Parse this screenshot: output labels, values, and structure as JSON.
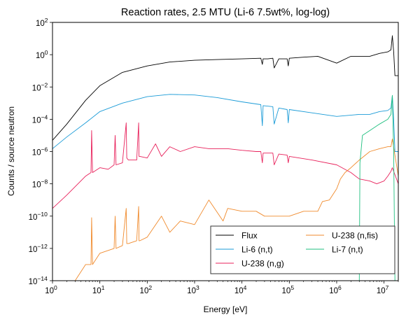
{
  "chart_data": {
    "type": "line",
    "title": "Reaction rates, 2.5 MTU (Li-6 7.5wt%, log-log)",
    "xlabel": "Energy [eV]",
    "ylabel": "Counts / source neutron",
    "xscale": "log",
    "yscale": "log",
    "xlim": [
      1,
      20000000
    ],
    "ylim": [
      1e-14,
      100
    ],
    "xticks": [
      {
        "value": 1,
        "base": "10",
        "exp": "0"
      },
      {
        "value": 10,
        "base": "10",
        "exp": "1"
      },
      {
        "value": 100,
        "base": "10",
        "exp": "2"
      },
      {
        "value": 1000,
        "base": "10",
        "exp": "3"
      },
      {
        "value": 10000,
        "base": "10",
        "exp": "4"
      },
      {
        "value": 100000,
        "base": "10",
        "exp": "5"
      },
      {
        "value": 1000000,
        "base": "10",
        "exp": "6"
      },
      {
        "value": 10000000,
        "base": "10",
        "exp": "7"
      }
    ],
    "yticks": [
      {
        "value": 1e-14,
        "base": "10",
        "exp": "−14"
      },
      {
        "value": 1e-12,
        "base": "10",
        "exp": "−12"
      },
      {
        "value": 1e-10,
        "base": "10",
        "exp": "−10"
      },
      {
        "value": 1e-08,
        "base": "10",
        "exp": "−8"
      },
      {
        "value": 1e-06,
        "base": "10",
        "exp": "−6"
      },
      {
        "value": 0.0001,
        "base": "10",
        "exp": "−4"
      },
      {
        "value": 0.01,
        "base": "10",
        "exp": "−2"
      },
      {
        "value": 1,
        "base": "10",
        "exp": "0"
      },
      {
        "value": 100,
        "base": "10",
        "exp": "2"
      }
    ],
    "grid": false,
    "legend_position": "lower-right",
    "legend_columns": 2,
    "series": [
      {
        "name": "Flux",
        "color": "#000000",
        "x": [
          1,
          2,
          5,
          10,
          30,
          100,
          300,
          1000,
          3000,
          10000,
          25000,
          27000,
          28000,
          35000,
          45000,
          48000,
          60000,
          90000,
          95000,
          100000,
          200000,
          400000,
          1000000,
          2000000,
          5000000,
          8000000,
          12000000,
          14000000,
          15000000,
          16000000,
          17000000,
          20000000
        ],
        "y": [
          5e-06,
          5e-05,
          0.0015,
          0.012,
          0.08,
          0.2,
          0.35,
          0.45,
          0.5,
          0.55,
          0.6,
          0.25,
          0.55,
          0.55,
          0.6,
          0.15,
          0.55,
          0.55,
          0.2,
          0.6,
          0.7,
          0.8,
          0.3,
          0.8,
          0.8,
          1.2,
          1.5,
          2.0,
          15,
          1.5,
          0.05,
          0.05
        ]
      },
      {
        "name": "Li-6 (n,t)",
        "color": "#1a9bd7",
        "x": [
          1,
          2,
          5,
          10,
          30,
          100,
          300,
          1000,
          3000,
          10000,
          25000,
          27000,
          28000,
          45000,
          48000,
          60000,
          90000,
          95000,
          100000,
          300000,
          1000000,
          3000000,
          5000000,
          8000000,
          12000000,
          14000000,
          15000000,
          16000000,
          17000000,
          20000000
        ],
        "y": [
          1.5e-06,
          8e-06,
          6e-05,
          0.0003,
          0.001,
          0.0025,
          0.0035,
          0.0032,
          0.0022,
          0.0012,
          0.0008,
          4e-05,
          0.0007,
          0.0006,
          5e-05,
          0.0005,
          0.0004,
          6e-05,
          0.0004,
          0.00025,
          0.00015,
          0.0002,
          0.0002,
          0.0003,
          0.00035,
          0.0005,
          0.003,
          0.0001,
          1e-06,
          1e-06
        ]
      },
      {
        "name": "U-238 (n,g)",
        "color": "#e8215b",
        "x": [
          1,
          2,
          5,
          6.5,
          6.7,
          7,
          10,
          15,
          20,
          21,
          22,
          30,
          36,
          37,
          40,
          60,
          66,
          67,
          70,
          100,
          150,
          200,
          300,
          500,
          1000,
          2000,
          5000,
          10000,
          20000,
          25000,
          27000,
          28000,
          45000,
          48000,
          60000,
          90000,
          95000,
          100000,
          300000,
          1000000,
          2000000,
          3000000,
          5000000,
          7000000,
          10000000,
          12000000,
          14000000,
          15000000,
          20000000
        ],
        "y": [
          3e-10,
          2e-09,
          3e-08,
          5e-08,
          2e-05,
          5e-08,
          1e-07,
          8e-08,
          1.5e-07,
          1e-05,
          1.5e-07,
          2e-07,
          6e-05,
          4e-07,
          3e-07,
          3e-07,
          6e-05,
          5e-07,
          5e-07,
          4e-07,
          3e-06,
          5e-07,
          2e-06,
          1e-06,
          2e-06,
          1.5e-06,
          1.5e-06,
          1.2e-06,
          1e-06,
          1e-06,
          2e-07,
          8e-07,
          8e-07,
          1.5e-07,
          7e-07,
          6e-07,
          2e-07,
          5e-07,
          3e-07,
          1.5e-07,
          5e-08,
          2e-08,
          1.5e-08,
          1e-08,
          1.5e-08,
          3e-08,
          6e-08,
          1e-07,
          1e-08
        ]
      },
      {
        "name": "U-238 (n,fis)",
        "color": "#f08a2c",
        "x": [
          3,
          5,
          6.5,
          6.7,
          7,
          10,
          20,
          21,
          22,
          30,
          36,
          37,
          40,
          60,
          66,
          67,
          70,
          100,
          200,
          300,
          500,
          1000,
          2000,
          4000,
          5000,
          10000,
          20000,
          30000,
          60000,
          100000,
          200000,
          400000,
          500000,
          700000,
          1000000,
          1200000,
          1500000,
          2000000,
          3000000,
          5000000,
          8000000,
          12000000,
          14000000,
          15000000,
          20000000
        ],
        "y": [
          1e-14,
          1e-13,
          1e-13,
          8e-11,
          1e-13,
          5e-13,
          1e-12,
          1e-10,
          1e-12,
          1.5e-12,
          3e-10,
          2e-12,
          2e-12,
          3e-12,
          4e-10,
          3e-12,
          3e-12,
          5e-12,
          1e-10,
          1e-11,
          5e-11,
          3e-11,
          1e-09,
          5e-11,
          3e-10,
          2e-10,
          2e-10,
          1e-10,
          1e-10,
          1e-10,
          2e-10,
          2e-10,
          8e-10,
          1e-09,
          5e-09,
          2e-08,
          5e-08,
          1e-07,
          3e-07,
          1e-06,
          1.5e-06,
          2e-06,
          2e-06,
          6e-06,
          3e-08
        ]
      },
      {
        "name": "Li-7 (n,t)",
        "color": "#1fbf7f",
        "x": [
          3000000,
          3100000,
          3500000,
          5000000,
          8000000,
          12000000,
          14000000,
          15000000,
          16000000,
          17000000
        ],
        "y": [
          1e-14,
          2e-07,
          1e-05,
          2e-05,
          5e-05,
          0.0001,
          0.0002,
          0.003,
          1e-06,
          1e-14
        ]
      }
    ]
  }
}
